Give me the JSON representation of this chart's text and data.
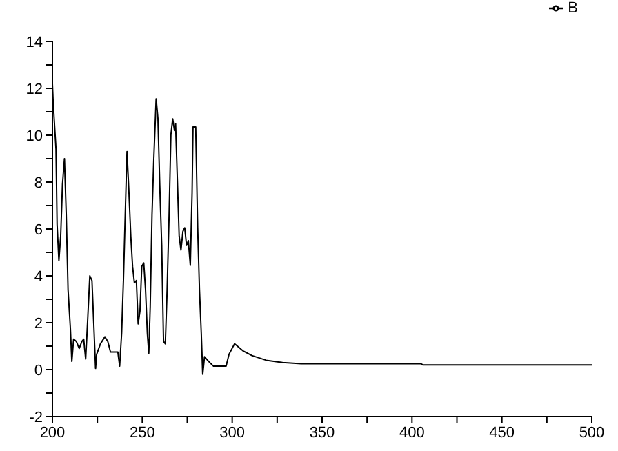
{
  "chart_data": {
    "type": "line",
    "legend": "top right",
    "grid": false,
    "marker": "none",
    "line_style": "solid",
    "x": [
      200,
      200.5,
      202,
      202.6,
      203.6,
      204.6,
      205.6,
      206.7,
      207.7,
      208.7,
      210,
      210.8,
      211.8,
      213.3,
      214.9,
      216.4,
      217.4,
      218.5,
      219.5,
      220.8,
      222,
      223,
      224,
      224.6,
      226.7,
      229.2,
      230.8,
      232.3,
      236.4,
      237.4,
      238.5,
      239.5,
      240.5,
      241.5,
      242.6,
      243.6,
      244.6,
      245.6,
      246.7,
      247.7,
      248.7,
      249.7,
      250.8,
      251.8,
      252.8,
      253.6,
      254.4,
      255.4,
      256.4,
      257.7,
      258.7,
      259.7,
      260.8,
      261.8,
      262.8,
      263.8,
      264.9,
      265.9,
      266.9,
      267.9,
      268.5,
      269.5,
      270.5,
      271.5,
      272.6,
      273.6,
      274.6,
      275.6,
      276.7,
      277.7,
      278.2,
      279.7,
      280.8,
      281.8,
      282.8,
      283.6,
      284.6,
      286.9,
      289.5,
      296.6,
      298.2,
      301.3,
      306,
      311,
      318.9,
      328,
      338.3,
      405,
      406,
      500
    ],
    "series": [
      {
        "name": "B",
        "color": "#000000",
        "values": [
          12.2,
          11.3,
          9.4,
          6.2,
          4.65,
          5.7,
          7.9,
          9.0,
          6.6,
          3.4,
          1.75,
          0.35,
          1.3,
          1.2,
          0.9,
          1.2,
          1.3,
          0.45,
          1.95,
          4.0,
          3.8,
          1.95,
          0.05,
          0.65,
          1.1,
          1.4,
          1.2,
          0.75,
          0.75,
          0.15,
          1.55,
          3.8,
          6.6,
          9.3,
          7.5,
          5.7,
          4.4,
          3.7,
          3.8,
          1.95,
          2.5,
          4.4,
          4.55,
          3.4,
          1.55,
          0.7,
          2.7,
          6.6,
          9.0,
          11.55,
          10.7,
          7.9,
          5.3,
          1.2,
          1.1,
          3.4,
          6.6,
          10.0,
          10.7,
          10.2,
          10.5,
          8.1,
          5.7,
          5.1,
          5.9,
          6.05,
          5.3,
          5.5,
          4.45,
          7.55,
          10.35,
          10.35,
          6.05,
          3.4,
          1.55,
          -0.2,
          0.55,
          0.35,
          0.15,
          0.15,
          0.65,
          1.1,
          0.8,
          0.6,
          0.4,
          0.3,
          0.25,
          0.25,
          0.2,
          0.2
        ]
      }
    ],
    "xlim": [
      200,
      500
    ],
    "ylim": [
      -2,
      14
    ],
    "xticks": [
      200,
      {
        "value": 225,
        "label": null
      },
      250,
      {
        "value": 275,
        "label": null
      },
      300,
      {
        "value": 325,
        "label": null
      },
      350,
      {
        "value": 375,
        "label": null
      },
      400,
      {
        "value": 425,
        "label": null
      },
      450,
      {
        "value": 475,
        "label": null
      },
      500
    ],
    "yticks": [
      -2,
      {
        "value": -1,
        "label": null
      },
      0,
      {
        "value": 1,
        "label": null
      },
      2,
      {
        "value": 3,
        "label": null
      },
      4,
      {
        "value": 5,
        "label": null
      },
      6,
      {
        "value": 7,
        "label": null
      },
      8,
      {
        "value": 9,
        "label": null
      },
      10,
      {
        "value": 11,
        "label": null
      },
      12,
      {
        "value": 13,
        "label": null
      },
      14
    ]
  }
}
